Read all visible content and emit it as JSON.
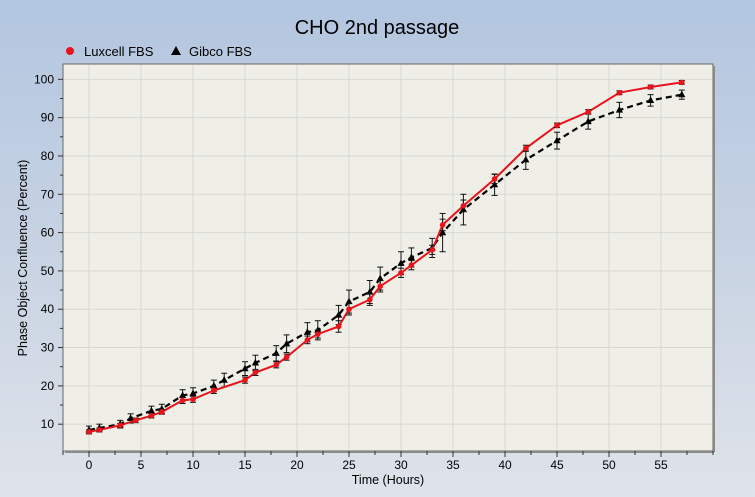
{
  "chart_data": {
    "type": "line",
    "title": "CHO 2nd passage",
    "xlabel": "Time (Hours)",
    "ylabel": "Phase Object Confluence (Percent)",
    "xlim": [
      -2.5,
      60
    ],
    "ylim": [
      3,
      104
    ],
    "xticks": [
      0,
      5,
      10,
      15,
      20,
      25,
      30,
      35,
      40,
      45,
      50,
      55
    ],
    "yticks": [
      10,
      20,
      30,
      40,
      50,
      60,
      70,
      80,
      90,
      100
    ],
    "grid": true,
    "legend_position": "top-left",
    "series": [
      {
        "name": "Luxcell FBS",
        "color": "#e8141c",
        "marker": "circle",
        "line_style": "solid",
        "x": [
          0,
          1,
          3,
          4.5,
          6,
          7,
          9,
          10,
          12,
          15,
          16,
          18,
          19,
          21,
          22,
          24,
          25,
          27,
          28,
          30,
          31,
          33,
          34,
          36,
          39,
          42,
          45,
          48,
          51,
          54,
          57
        ],
        "y": [
          8,
          8.5,
          9.7,
          11,
          12.2,
          13.2,
          16.2,
          16.5,
          18.8,
          21.5,
          23.5,
          25.5,
          27.5,
          32,
          33.5,
          35.5,
          40,
          42.5,
          46,
          49.5,
          51.5,
          55.5,
          62,
          67,
          74,
          82,
          88,
          91.5,
          96.5,
          98,
          99.2
        ],
        "error": [
          0.5,
          0.5,
          0.5,
          0.6,
          0.6,
          0.6,
          0.8,
          0.8,
          0.8,
          0.8,
          0.8,
          0.8,
          0.8,
          1,
          1,
          1.5,
          1.5,
          1.5,
          1.5,
          1.2,
          1.2,
          1.2,
          1.5,
          1.5,
          1.2,
          0.8,
          0.6,
          0.6,
          0.5,
          0.5,
          0.5
        ]
      },
      {
        "name": "Gibco FBS",
        "color": "#000000",
        "marker": "triangle",
        "line_style": "dashed",
        "x": [
          0,
          1,
          3,
          4,
          6,
          7,
          9,
          10,
          12,
          13,
          15,
          16,
          18,
          19,
          21,
          22,
          24,
          25,
          27,
          28,
          30,
          31,
          33,
          34,
          36,
          39,
          42,
          45,
          48,
          51,
          54,
          57
        ],
        "y": [
          8.5,
          9,
          10,
          11.5,
          13.5,
          14,
          17.5,
          18,
          20,
          21.5,
          24.5,
          26,
          28.5,
          31,
          34,
          34.5,
          38.5,
          42,
          44.5,
          48,
          52,
          53.5,
          56,
          60,
          66,
          72.5,
          79,
          84,
          89,
          92,
          94.5,
          96
        ],
        "error": [
          1,
          1,
          1,
          1.2,
          1.2,
          1.2,
          1.5,
          1.5,
          1.5,
          1.8,
          1.8,
          2,
          2,
          2.3,
          2.5,
          2.5,
          2.5,
          3,
          3,
          3,
          3,
          2.5,
          2.5,
          5,
          4,
          2.8,
          2.5,
          2.2,
          2,
          2,
          1.5,
          1.2
        ]
      }
    ]
  }
}
